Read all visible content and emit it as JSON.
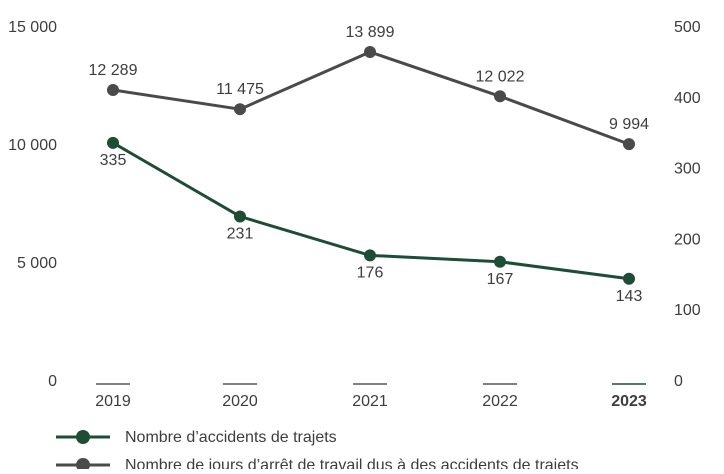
{
  "chart_data": {
    "type": "line",
    "categories": [
      "2019",
      "2020",
      "2021",
      "2022",
      "2023"
    ],
    "highlight_category": "2023",
    "y_left": {
      "ylim": [
        0,
        15000
      ],
      "ticks": [
        0,
        5000,
        10000,
        15000
      ],
      "tick_labels": [
        "0",
        "5 000",
        "10 000",
        "15 000"
      ]
    },
    "y_right": {
      "ylim": [
        0,
        500
      ],
      "ticks": [
        0,
        100,
        200,
        300,
        400,
        500
      ],
      "tick_labels": [
        "0",
        "100",
        "200",
        "300",
        "400",
        "500"
      ]
    },
    "series": [
      {
        "name": "Nombre d’accidents de trajets",
        "axis": "right",
        "color": "#1e4d35",
        "values": [
          335,
          231,
          176,
          167,
          143
        ],
        "labels": [
          "335",
          "231",
          "176",
          "167",
          "143"
        ]
      },
      {
        "name": "Nombre de jours d’arrêt de travail dus à des accidents de trajets",
        "axis": "left",
        "color": "#4a4a4a",
        "values": [
          12289,
          11475,
          13899,
          12022,
          9994
        ],
        "labels": [
          "12 289",
          "11 475",
          "13 899",
          "12 022",
          "9 994"
        ]
      }
    ],
    "grid": false,
    "legend_position": "bottom-left"
  }
}
